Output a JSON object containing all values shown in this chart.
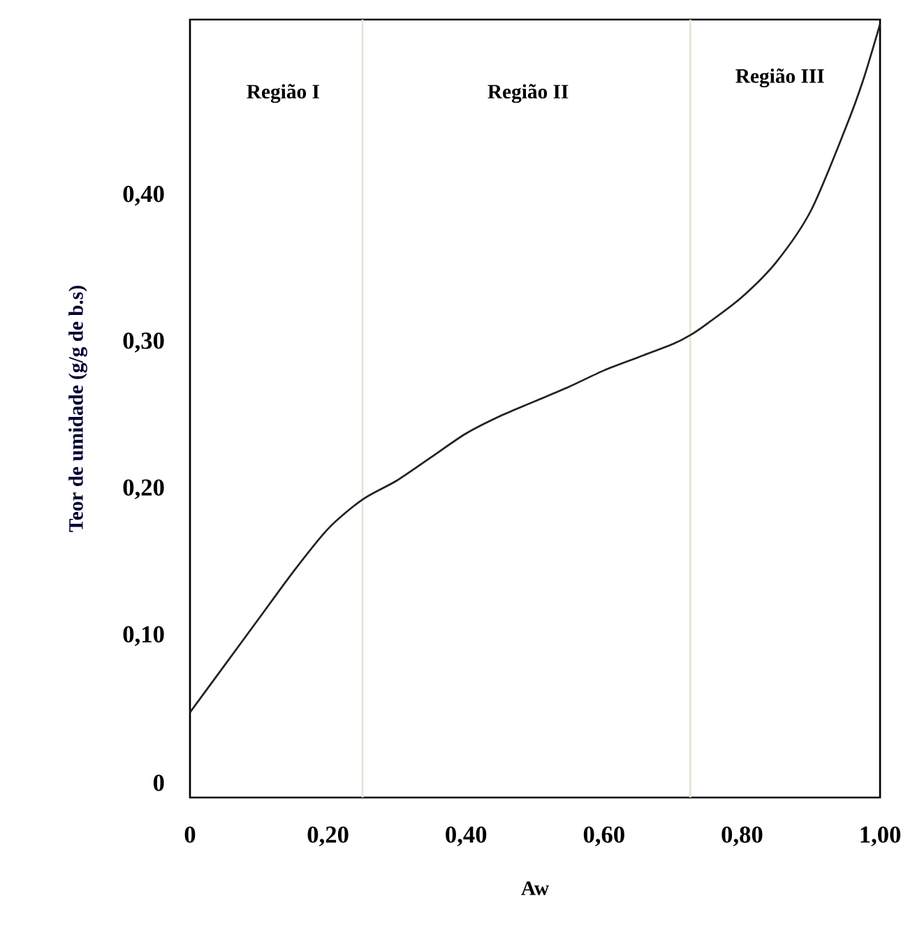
{
  "chart_data": {
    "type": "line",
    "xlabel": "Aw",
    "ylabel": "Teor de umidade (g/g de b.s)",
    "x": [
      0,
      0.05,
      0.1,
      0.15,
      0.2,
      0.25,
      0.3,
      0.35,
      0.4,
      0.45,
      0.5,
      0.55,
      0.6,
      0.65,
      0.7,
      0.725,
      0.75,
      0.8,
      0.85,
      0.9,
      0.95,
      0.975,
      1.0
    ],
    "series": [
      {
        "color": "#222222",
        "values": [
          0.048,
          0.08,
          0.112,
          0.144,
          0.173,
          0.193,
          0.206,
          0.222,
          0.238,
          0.25,
          0.26,
          0.27,
          0.281,
          0.29,
          0.299,
          0.305,
          0.313,
          0.331,
          0.355,
          0.39,
          0.446,
          0.478,
          0.517
        ]
      }
    ],
    "xlim": [
      0,
      1.0
    ],
    "ylim": [
      -0.01,
      0.52
    ],
    "xticks": [
      {
        "value": 0,
        "label": "0"
      },
      {
        "value": 0.2,
        "label": "0,20"
      },
      {
        "value": 0.4,
        "label": "0,40"
      },
      {
        "value": 0.6,
        "label": "0,60"
      },
      {
        "value": 0.8,
        "label": "0,80"
      },
      {
        "value": 1.0,
        "label": "1,00"
      }
    ],
    "yticks": [
      {
        "value": 0,
        "label": "0"
      },
      {
        "value": 0.1,
        "label": "0,10"
      },
      {
        "value": 0.2,
        "label": "0,20"
      },
      {
        "value": 0.3,
        "label": "0,30"
      },
      {
        "value": 0.4,
        "label": "0,40"
      }
    ],
    "ref_lines": [
      {
        "axis": "x",
        "value": 0.25,
        "color": "#e6e2d6"
      },
      {
        "axis": "x",
        "value": 0.725,
        "color": "#e6e2d6"
      }
    ],
    "annotations": [
      "Região I",
      "Região II",
      "Região III"
    ],
    "grid": false,
    "marker": "none",
    "line_style": "solid"
  }
}
